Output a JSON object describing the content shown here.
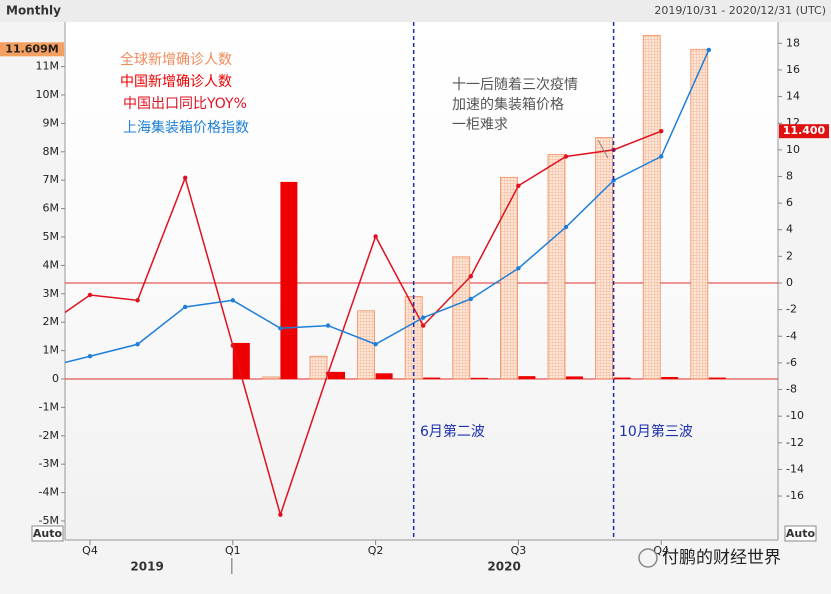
{
  "chart_data": {
    "type": "bar-line",
    "frequency": "Monthly",
    "date_range": "2019/10/31 - 2020/12/31 (UTC)",
    "categories": [
      null,
      null,
      null,
      null,
      null,
      null,
      null,
      null,
      null,
      null,
      null,
      null,
      null,
      null,
      null
    ],
    "xticks": [
      {
        "value": 1,
        "label": "Q4"
      },
      {
        "value": 4,
        "label": "Q1"
      },
      {
        "value": 7,
        "label": "Q2"
      },
      {
        "value": 10,
        "label": "Q3"
      },
      {
        "value": 13,
        "label": "Q4"
      }
    ],
    "years": [
      "2019",
      "2020"
    ],
    "ylim": [
      -5.67,
      12.57
    ],
    "yticks": [
      {
        "value": -5,
        "label": "-5M"
      },
      {
        "value": -4,
        "label": "-4M"
      },
      {
        "value": -3,
        "label": "-3M"
      },
      {
        "value": -2,
        "label": "-2M"
      },
      {
        "value": -1,
        "label": "-1M"
      },
      0,
      {
        "value": 1,
        "label": "1M"
      },
      {
        "value": 2,
        "label": "2M"
      },
      {
        "value": 3,
        "label": "3M"
      },
      {
        "value": 4,
        "label": "4M"
      },
      {
        "value": 5,
        "label": "5M"
      },
      {
        "value": 6,
        "label": "6M"
      },
      {
        "value": 7,
        "label": "7M"
      },
      {
        "value": 8,
        "label": "8M"
      },
      {
        "value": 9,
        "label": "9M"
      },
      {
        "value": 10,
        "label": "10M"
      },
      {
        "value": 11,
        "label": "11M"
      }
    ],
    "y2lim": [
      -19.3,
      19.6
    ],
    "y2ticks": [
      -16,
      -14,
      -12,
      -10,
      -8,
      -6,
      -4,
      -2,
      0,
      2,
      4,
      6,
      8,
      10,
      12,
      14,
      16,
      18
    ],
    "auto_label": "Auto",
    "series": [
      {
        "name": "全球新增确诊人数",
        "type": "bar",
        "color": "#f08a5d",
        "values": [
          null,
          null,
          null,
          null,
          0,
          0.07,
          0.8,
          2.4,
          2.9,
          4.3,
          7.1,
          7.9,
          8.5,
          12.1,
          11.609
        ],
        "value_labels": [
          null,
          null,
          null,
          null,
          null,
          null,
          null,
          null,
          null,
          null,
          null,
          null,
          null,
          null,
          "11.609M"
        ]
      },
      {
        "name": "中国新增确诊人数",
        "type": "bar",
        "color": "#ee0000",
        "values": [
          null,
          null,
          null,
          null,
          1.27,
          6.94,
          0.25,
          0.2,
          0.05,
          0.04,
          0.1,
          0.09,
          0.05,
          0.07,
          0.05
        ]
      },
      {
        "name": "中国出口同比YOY%",
        "type": "line",
        "axis": "y2",
        "color": "#e01020",
        "values": [
          -3.4,
          -0.9,
          -1.3,
          7.9,
          -4.7,
          -17.4,
          -6.8,
          3.5,
          -3.2,
          0.5,
          7.3,
          9.5,
          10.0,
          11.4,
          null
        ],
        "value_labels": [
          null,
          null,
          null,
          null,
          null,
          null,
          null,
          null,
          null,
          null,
          null,
          null,
          null,
          "11.400",
          null
        ]
      },
      {
        "name": "上海集装箱价格指数",
        "type": "line",
        "axis": "y2",
        "color": "#1e7fd8",
        "values": [
          -6.4,
          -5.5,
          -4.6,
          -1.8,
          -1.3,
          -3.4,
          -3.2,
          -4.6,
          -2.6,
          -1.2,
          1.1,
          4.2,
          7.7,
          9.5,
          17.5
        ]
      }
    ],
    "annotations": [
      {
        "text": "6月第二波"
      },
      {
        "text": "10月第三波"
      },
      {
        "lines": [
          "十一后随着三次疫情",
          "加速的集装箱价格",
          "一柜难求"
        ]
      }
    ],
    "watermark": "付鹏的财经世界"
  }
}
